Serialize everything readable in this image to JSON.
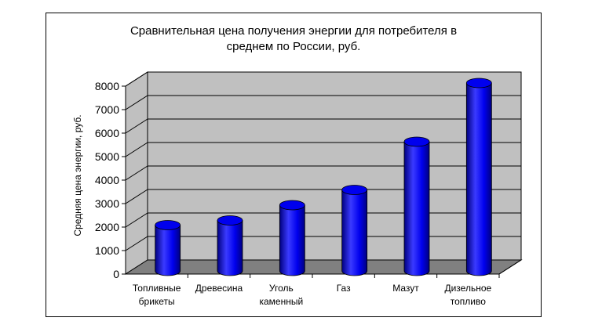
{
  "chart_data": {
    "type": "bar",
    "title_lines": [
      "Сравнительная цена получения энергии для потребителя в",
      "среднем по России, руб."
    ],
    "ylabel": "Средняя цена энергии, руб.",
    "xlabel": "",
    "ylim": [
      0,
      8000
    ],
    "yticks": [
      "0",
      "1000",
      "2000",
      "3000",
      "4000",
      "5000",
      "6000",
      "7000",
      "8000"
    ],
    "categories": [
      [
        "Топливные",
        "брикеты"
      ],
      [
        "Древесина"
      ],
      [
        "Уголь",
        "каменный"
      ],
      [
        "Газ"
      ],
      [
        "Мазут"
      ],
      [
        "Дизельное",
        "топливо"
      ]
    ],
    "values": [
      1950,
      2150,
      2800,
      3450,
      5500,
      8000
    ],
    "style": "3d-cylinder",
    "grid": true,
    "legend": "none",
    "colors": {
      "bar": "#0000ee",
      "bar_dark": "#000080",
      "bar_light": "#3a3aff",
      "wall": "#c0c0c0",
      "floor": "#808080",
      "gridline": "#000000"
    }
  }
}
